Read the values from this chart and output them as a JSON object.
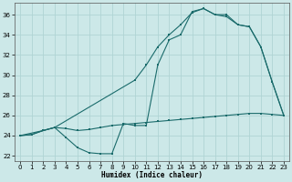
{
  "background_color": "#cce8e8",
  "grid_color": "#b0d4d4",
  "line_color": "#1a6b6b",
  "xlabel": "Humidex (Indice chaleur)",
  "xlim": [
    -0.5,
    23.5
  ],
  "ylim": [
    21.5,
    37.2
  ],
  "xticks": [
    0,
    1,
    2,
    3,
    4,
    5,
    6,
    7,
    8,
    9,
    10,
    11,
    12,
    13,
    14,
    15,
    16,
    17,
    18,
    19,
    20,
    21,
    22,
    23
  ],
  "yticks": [
    22,
    24,
    26,
    28,
    30,
    32,
    34,
    36
  ],
  "line1_x": [
    0,
    1,
    2,
    3,
    4,
    5,
    6,
    7,
    8,
    9,
    10,
    11,
    12,
    13,
    14,
    15,
    16,
    17,
    18,
    19,
    20,
    21,
    22,
    23
  ],
  "line1_y": [
    24.0,
    24.1,
    24.5,
    24.8,
    23.8,
    22.8,
    22.3,
    22.2,
    22.2,
    25.2,
    25.0,
    25.0,
    31.0,
    33.5,
    34.0,
    36.3,
    36.6,
    36.0,
    35.8,
    35.0,
    34.8,
    32.8,
    29.3,
    26.0
  ],
  "line2_x": [
    0,
    2,
    3,
    10,
    11,
    12,
    13,
    14,
    15,
    16,
    17,
    18,
    19,
    20,
    21,
    22,
    23
  ],
  "line2_y": [
    24.0,
    24.5,
    24.8,
    29.5,
    31.0,
    32.8,
    34.0,
    35.0,
    36.2,
    36.6,
    36.0,
    36.0,
    35.0,
    34.8,
    32.8,
    29.3,
    26.0
  ],
  "line3_x": [
    0,
    1,
    2,
    3,
    4,
    5,
    6,
    7,
    8,
    9,
    10,
    11,
    12,
    13,
    14,
    15,
    16,
    17,
    18,
    19,
    20,
    21,
    22,
    23
  ],
  "line3_y": [
    24.0,
    24.1,
    24.5,
    24.8,
    24.7,
    24.5,
    24.6,
    24.8,
    25.0,
    25.1,
    25.2,
    25.3,
    25.4,
    25.5,
    25.6,
    25.7,
    25.8,
    25.9,
    26.0,
    26.1,
    26.2,
    26.2,
    26.1,
    26.0
  ]
}
